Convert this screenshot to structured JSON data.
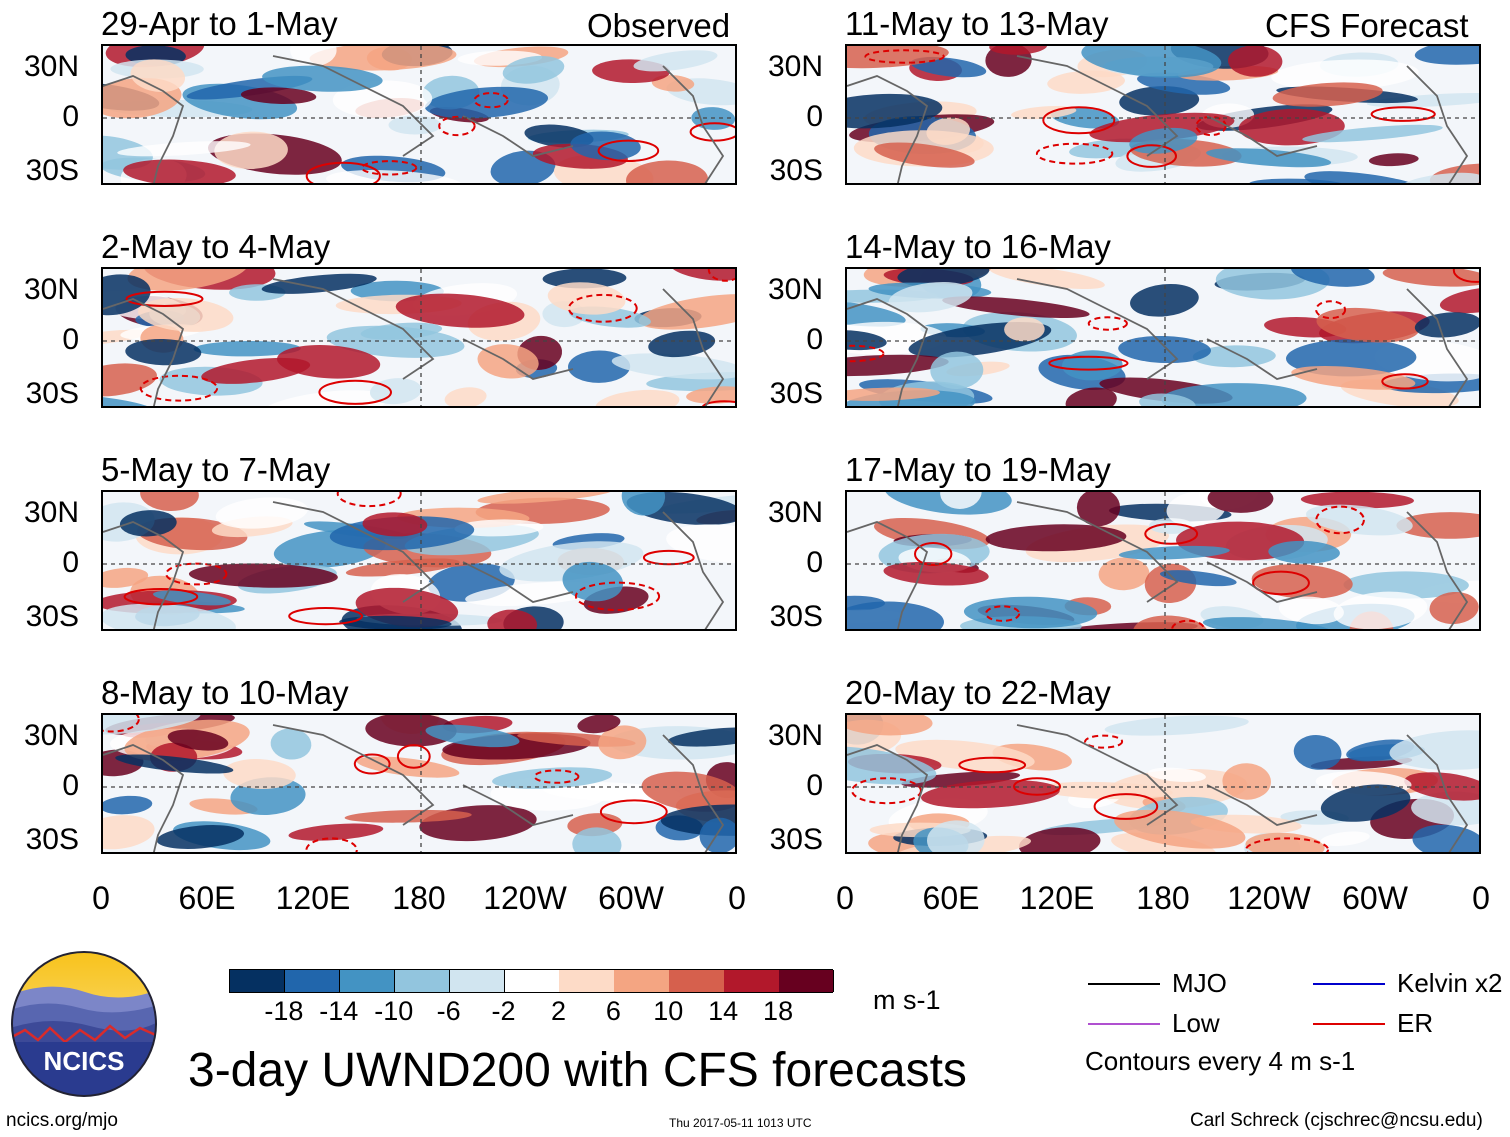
{
  "header": {
    "observed_label": "Observed",
    "forecast_label": "CFS Forecast"
  },
  "chart_data": {
    "type": "heatmap",
    "title": "3-day UWND200 with CFS forecasts",
    "units": "m s-1",
    "xlabel": "",
    "ylabel": "",
    "x_ticks": [
      "0",
      "60E",
      "120E",
      "180",
      "120W",
      "60W",
      "0"
    ],
    "y_ticks": [
      "30N",
      "0",
      "30S"
    ],
    "colorbar_levels": [
      "-18",
      "-14",
      "-10",
      "-6",
      "-2",
      "2",
      "6",
      "10",
      "14",
      "18"
    ],
    "colorbar_colors": [
      "#053061",
      "#2166ac",
      "#4393c3",
      "#92c5de",
      "#d1e5f0",
      "#ffffff",
      "#fddbc7",
      "#f4a582",
      "#d6604d",
      "#b2182b",
      "#67001f"
    ],
    "panels": [
      {
        "period": "29-Apr to 1-May",
        "source": "Observed"
      },
      {
        "period": "2-May to 4-May",
        "source": "Observed"
      },
      {
        "period": "5-May to 7-May",
        "source": "Observed"
      },
      {
        "period": "8-May to 10-May",
        "source": "Observed"
      },
      {
        "period": "11-May to 13-May",
        "source": "CFS Forecast"
      },
      {
        "period": "14-May to 16-May",
        "source": "CFS Forecast"
      },
      {
        "period": "17-May to 19-May",
        "source": "CFS Forecast"
      },
      {
        "period": "20-May to 22-May",
        "source": "CFS Forecast"
      }
    ],
    "legend": [
      {
        "label": "MJO",
        "color": "#000000"
      },
      {
        "label": "Kelvin x2",
        "color": "#0000cc"
      },
      {
        "label": "Low",
        "color": "#b050d0"
      },
      {
        "label": "ER",
        "color": "#dd0000"
      }
    ],
    "contour_note": "Contours every 4 m s-1"
  },
  "logo": {
    "text": "NCICS"
  },
  "footer": {
    "url": "ncics.org/mjo",
    "timestamp": "Thu 2017-05-11 1013 UTC",
    "author": "Carl Schreck (cjschrec@ncsu.edu)"
  }
}
